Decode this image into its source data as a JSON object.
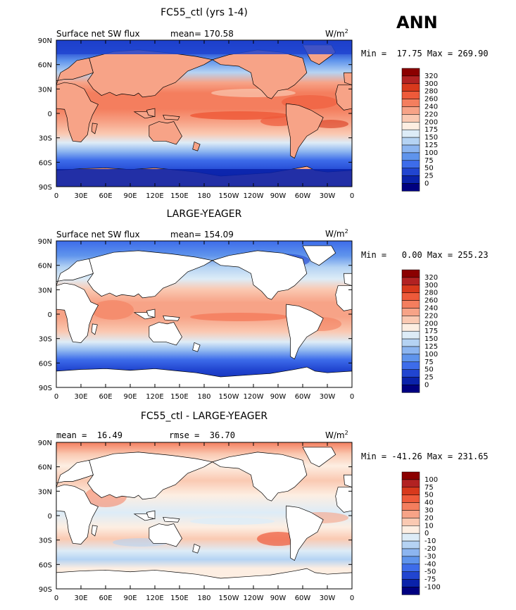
{
  "season": "ANN",
  "units_base": "W/m",
  "units_exp": "2",
  "lat_labels": [
    "90N",
    "60N",
    "30N",
    "0",
    "30S",
    "60S",
    "90S"
  ],
  "lon_labels": [
    "0",
    "30E",
    "60E",
    "90E",
    "120E",
    "150E",
    "180",
    "150W",
    "120W",
    "90W",
    "60W",
    "30W",
    "0"
  ],
  "panels": [
    {
      "title": "FC55_ctl (yrs 1-4)",
      "left_text": "Surface net SW flux",
      "right_text": "mean= 170.58",
      "minmax": "Min =  17.75 Max = 269.90",
      "land_masked": false,
      "colorbar_labels": [
        "320",
        "300",
        "280",
        "260",
        "240",
        "220",
        "200",
        "175",
        "150",
        "125",
        "100",
        "75",
        "50",
        "25",
        "0"
      ],
      "colorbar_colors": [
        "#8b0000",
        "#b22222",
        "#d8391c",
        "#ee5a3a",
        "#f47e5e",
        "#f7a387",
        "#fac9b2",
        "#fdeee2",
        "#ddecf7",
        "#b5d3f3",
        "#8cb5f0",
        "#5f94ec",
        "#3d6cea",
        "#2145d0",
        "#0a22aa",
        "#000080"
      ]
    },
    {
      "title": "LARGE-YEAGER",
      "left_text": "Surface net SW flux",
      "right_text": "mean= 154.09",
      "minmax": "Min =   0.00 Max = 255.23",
      "land_masked": true,
      "colorbar_labels": [
        "320",
        "300",
        "280",
        "260",
        "240",
        "220",
        "200",
        "175",
        "150",
        "125",
        "100",
        "75",
        "50",
        "25",
        "0"
      ],
      "colorbar_colors": [
        "#8b0000",
        "#b22222",
        "#d8391c",
        "#ee5a3a",
        "#f47e5e",
        "#f7a387",
        "#fac9b2",
        "#fdeee2",
        "#ddecf7",
        "#b5d3f3",
        "#8cb5f0",
        "#5f94ec",
        "#3d6cea",
        "#2145d0",
        "#0a22aa",
        "#000080"
      ]
    },
    {
      "title": "FC55_ctl - LARGE-YEAGER",
      "left_text": "mean =  16.49",
      "right_text": "rmse =  36.70",
      "minmax": "Min = -41.26 Max = 231.65",
      "land_masked": true,
      "colorbar_labels": [
        "100",
        "75",
        "50",
        "40",
        "30",
        "20",
        "10",
        "0",
        "-10",
        "-20",
        "-30",
        "-40",
        "-50",
        "-75",
        "-100"
      ],
      "colorbar_colors": [
        "#8b0000",
        "#b22222",
        "#d8391c",
        "#ee5a3a",
        "#f47e5e",
        "#f7a387",
        "#fac9b2",
        "#fdeee2",
        "#ddecf7",
        "#b5d3f3",
        "#8cb5f0",
        "#5f94ec",
        "#3d6cea",
        "#2145d0",
        "#0a22aa",
        "#000080"
      ]
    }
  ]
}
